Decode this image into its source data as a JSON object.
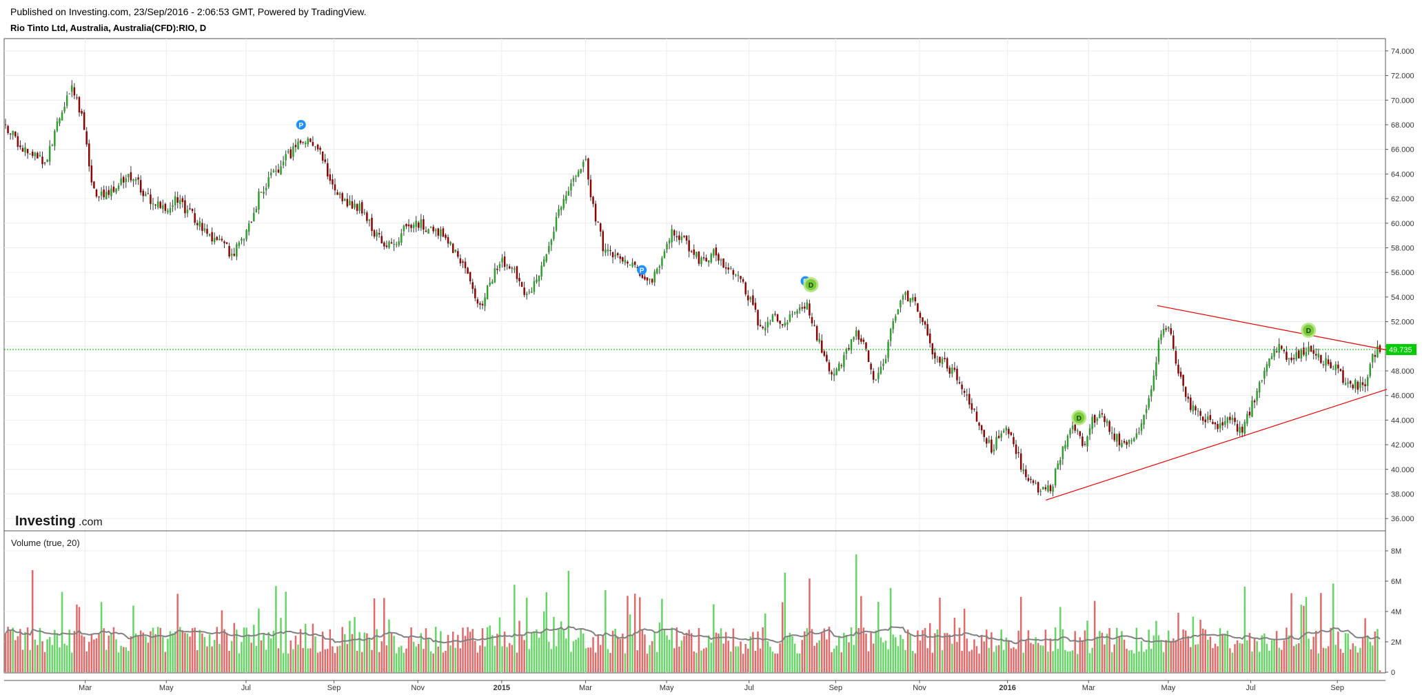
{
  "header": {
    "published": "Published on Investing.com, 23/Sep/2016 - 2:06:53 GMT, Powered by TradingView.",
    "symbol": "Rio Tinto Ltd, Australia, Australia(CFD):RIO, D"
  },
  "logo": {
    "brand": "Investing",
    "suffix": ".com"
  },
  "volume_panel": {
    "label": "Volume (true, 20)"
  },
  "colors": {
    "up": "#2e9e2e",
    "down": "#8b0000",
    "wick": "#333333",
    "vol_up": "#66d466",
    "vol_down": "#e06a6a",
    "ma": "#808080",
    "trend": "#e60000",
    "price_line": "#00b300",
    "price_tag": "#00cc00",
    "marker_p": "#1e90ff",
    "marker_d": "#7acc3a",
    "grid": "#ececec"
  },
  "chart_data": {
    "type": "candlestick",
    "price_axis": {
      "ylim": [
        35,
        75
      ],
      "ticks": [
        "74.000",
        "72.000",
        "70.000",
        "68.000",
        "66.000",
        "64.000",
        "62.000",
        "60.000",
        "58.000",
        "56.000",
        "54.000",
        "52.000",
        "50.000",
        "48.000",
        "46.000",
        "44.000",
        "42.000",
        "40.000",
        "38.000",
        "36.000"
      ],
      "tick_values": [
        74,
        72,
        70,
        68,
        66,
        64,
        62,
        60,
        58,
        56,
        54,
        52,
        50,
        48,
        46,
        44,
        42,
        40,
        38,
        36
      ]
    },
    "volume_axis": {
      "ylim": [
        0,
        9000000
      ],
      "ticks": [
        "8M",
        "6M",
        "4M",
        "2M",
        "0"
      ],
      "tick_values": [
        8000000,
        6000000,
        4000000,
        2000000,
        0
      ]
    },
    "x_axis": {
      "labels": [
        {
          "text": "Mar",
          "pos": 0.058,
          "year": false
        },
        {
          "text": "May",
          "pos": 0.117,
          "year": false
        },
        {
          "text": "Jul",
          "pos": 0.175,
          "year": false
        },
        {
          "text": "Sep",
          "pos": 0.239,
          "year": false
        },
        {
          "text": "Nov",
          "pos": 0.3,
          "year": false
        },
        {
          "text": "2015",
          "pos": 0.361,
          "year": true
        },
        {
          "text": "Mar",
          "pos": 0.422,
          "year": false
        },
        {
          "text": "May",
          "pos": 0.481,
          "year": false
        },
        {
          "text": "Jul",
          "pos": 0.541,
          "year": false
        },
        {
          "text": "Sep",
          "pos": 0.604,
          "year": false
        },
        {
          "text": "Nov",
          "pos": 0.665,
          "year": false
        },
        {
          "text": "2016",
          "pos": 0.729,
          "year": true
        },
        {
          "text": "Mar",
          "pos": 0.788,
          "year": false
        },
        {
          "text": "May",
          "pos": 0.846,
          "year": false
        },
        {
          "text": "Jul",
          "pos": 0.906,
          "year": false
        },
        {
          "text": "Sep",
          "pos": 0.969,
          "year": false
        }
      ]
    },
    "price_path": [
      [
        0.0,
        68.0
      ],
      [
        0.01,
        66.5
      ],
      [
        0.02,
        65.5
      ],
      [
        0.03,
        65.0
      ],
      [
        0.04,
        69.0
      ],
      [
        0.048,
        71.0
      ],
      [
        0.055,
        69.0
      ],
      [
        0.065,
        62.0
      ],
      [
        0.075,
        62.5
      ],
      [
        0.09,
        64.0
      ],
      [
        0.105,
        62.0
      ],
      [
        0.115,
        61.0
      ],
      [
        0.125,
        62.0
      ],
      [
        0.14,
        60.0
      ],
      [
        0.155,
        58.5
      ],
      [
        0.165,
        57.5
      ],
      [
        0.175,
        59.0
      ],
      [
        0.185,
        62.5
      ],
      [
        0.195,
        64.0
      ],
      [
        0.21,
        66.0
      ],
      [
        0.218,
        67.0
      ],
      [
        0.225,
        66.5
      ],
      [
        0.235,
        64.0
      ],
      [
        0.245,
        62.0
      ],
      [
        0.26,
        61.0
      ],
      [
        0.27,
        59.0
      ],
      [
        0.28,
        58.0
      ],
      [
        0.29,
        59.5
      ],
      [
        0.3,
        60.0
      ],
      [
        0.31,
        59.5
      ],
      [
        0.32,
        59.0
      ],
      [
        0.33,
        57.0
      ],
      [
        0.34,
        55.0
      ],
      [
        0.345,
        53.0
      ],
      [
        0.352,
        55.0
      ],
      [
        0.36,
        57.0
      ],
      [
        0.37,
        56.0
      ],
      [
        0.378,
        54.0
      ],
      [
        0.385,
        55.0
      ],
      [
        0.392,
        57.0
      ],
      [
        0.4,
        60.0
      ],
      [
        0.408,
        62.5
      ],
      [
        0.415,
        64.0
      ],
      [
        0.422,
        65.0
      ],
      [
        0.428,
        61.0
      ],
      [
        0.435,
        58.0
      ],
      [
        0.445,
        57.5
      ],
      [
        0.455,
        56.5
      ],
      [
        0.462,
        56.0
      ],
      [
        0.47,
        55.0
      ],
      [
        0.478,
        57.5
      ],
      [
        0.485,
        59.5
      ],
      [
        0.495,
        58.5
      ],
      [
        0.505,
        57.0
      ],
      [
        0.515,
        57.5
      ],
      [
        0.525,
        56.5
      ],
      [
        0.535,
        55.5
      ],
      [
        0.545,
        53.0
      ],
      [
        0.55,
        51.0
      ],
      [
        0.558,
        52.5
      ],
      [
        0.565,
        51.5
      ],
      [
        0.575,
        53.0
      ],
      [
        0.582,
        53.5
      ],
      [
        0.59,
        51.0
      ],
      [
        0.597,
        48.5
      ],
      [
        0.602,
        47.5
      ],
      [
        0.61,
        49.0
      ],
      [
        0.618,
        51.0
      ],
      [
        0.625,
        50.0
      ],
      [
        0.632,
        47.5
      ],
      [
        0.638,
        48.0
      ],
      [
        0.645,
        52.0
      ],
      [
        0.652,
        54.0
      ],
      [
        0.66,
        54.0
      ],
      [
        0.668,
        52.0
      ],
      [
        0.675,
        49.5
      ],
      [
        0.685,
        48.5
      ],
      [
        0.695,
        47.0
      ],
      [
        0.702,
        45.5
      ],
      [
        0.71,
        43.0
      ],
      [
        0.718,
        41.5
      ],
      [
        0.725,
        43.5
      ],
      [
        0.73,
        43.0
      ],
      [
        0.737,
        41.0
      ],
      [
        0.743,
        39.0
      ],
      [
        0.75,
        38.5
      ],
      [
        0.757,
        38.0
      ],
      [
        0.762,
        39.0
      ],
      [
        0.77,
        42.0
      ],
      [
        0.778,
        43.5
      ],
      [
        0.785,
        42.0
      ],
      [
        0.79,
        44.0
      ],
      [
        0.798,
        44.5
      ],
      [
        0.805,
        43.0
      ],
      [
        0.812,
        42.0
      ],
      [
        0.82,
        42.5
      ],
      [
        0.828,
        44.0
      ],
      [
        0.835,
        47.0
      ],
      [
        0.84,
        51.0
      ],
      [
        0.846,
        52.0
      ],
      [
        0.851,
        49.0
      ],
      [
        0.858,
        46.0
      ],
      [
        0.866,
        44.5
      ],
      [
        0.875,
        44.0
      ],
      [
        0.884,
        43.5
      ],
      [
        0.892,
        44.0
      ],
      [
        0.9,
        43.0
      ],
      [
        0.906,
        45.0
      ],
      [
        0.913,
        47.0
      ],
      [
        0.92,
        49.0
      ],
      [
        0.928,
        50.0
      ],
      [
        0.935,
        48.5
      ],
      [
        0.942,
        49.5
      ],
      [
        0.95,
        50.0
      ],
      [
        0.957,
        49.0
      ],
      [
        0.965,
        48.5
      ],
      [
        0.972,
        47.5
      ],
      [
        0.98,
        47.0
      ],
      [
        0.988,
        46.5
      ],
      [
        0.995,
        49.5
      ],
      [
        1.0,
        49.735
      ]
    ],
    "last_price": 49.735,
    "last_price_label": "49.735",
    "trendlines": [
      {
        "from": [
          0.838,
          53.3
        ],
        "to": [
          1.0,
          49.7
        ]
      },
      {
        "from": [
          0.757,
          37.5
        ],
        "to": [
          1.0,
          46.5
        ]
      }
    ],
    "markers": [
      {
        "text": "P",
        "pos": 0.215,
        "price": 68.0,
        "kind": "p"
      },
      {
        "text": "P",
        "pos": 0.463,
        "price": 56.2,
        "kind": "p"
      },
      {
        "text": "P",
        "pos": 0.582,
        "price": 55.3,
        "kind": "p"
      },
      {
        "text": "D",
        "pos": 0.586,
        "price": 55.0,
        "kind": "d"
      },
      {
        "text": "D",
        "pos": 0.781,
        "price": 44.2,
        "kind": "d"
      },
      {
        "text": "D",
        "pos": 0.948,
        "price": 51.3,
        "kind": "d"
      }
    ]
  }
}
